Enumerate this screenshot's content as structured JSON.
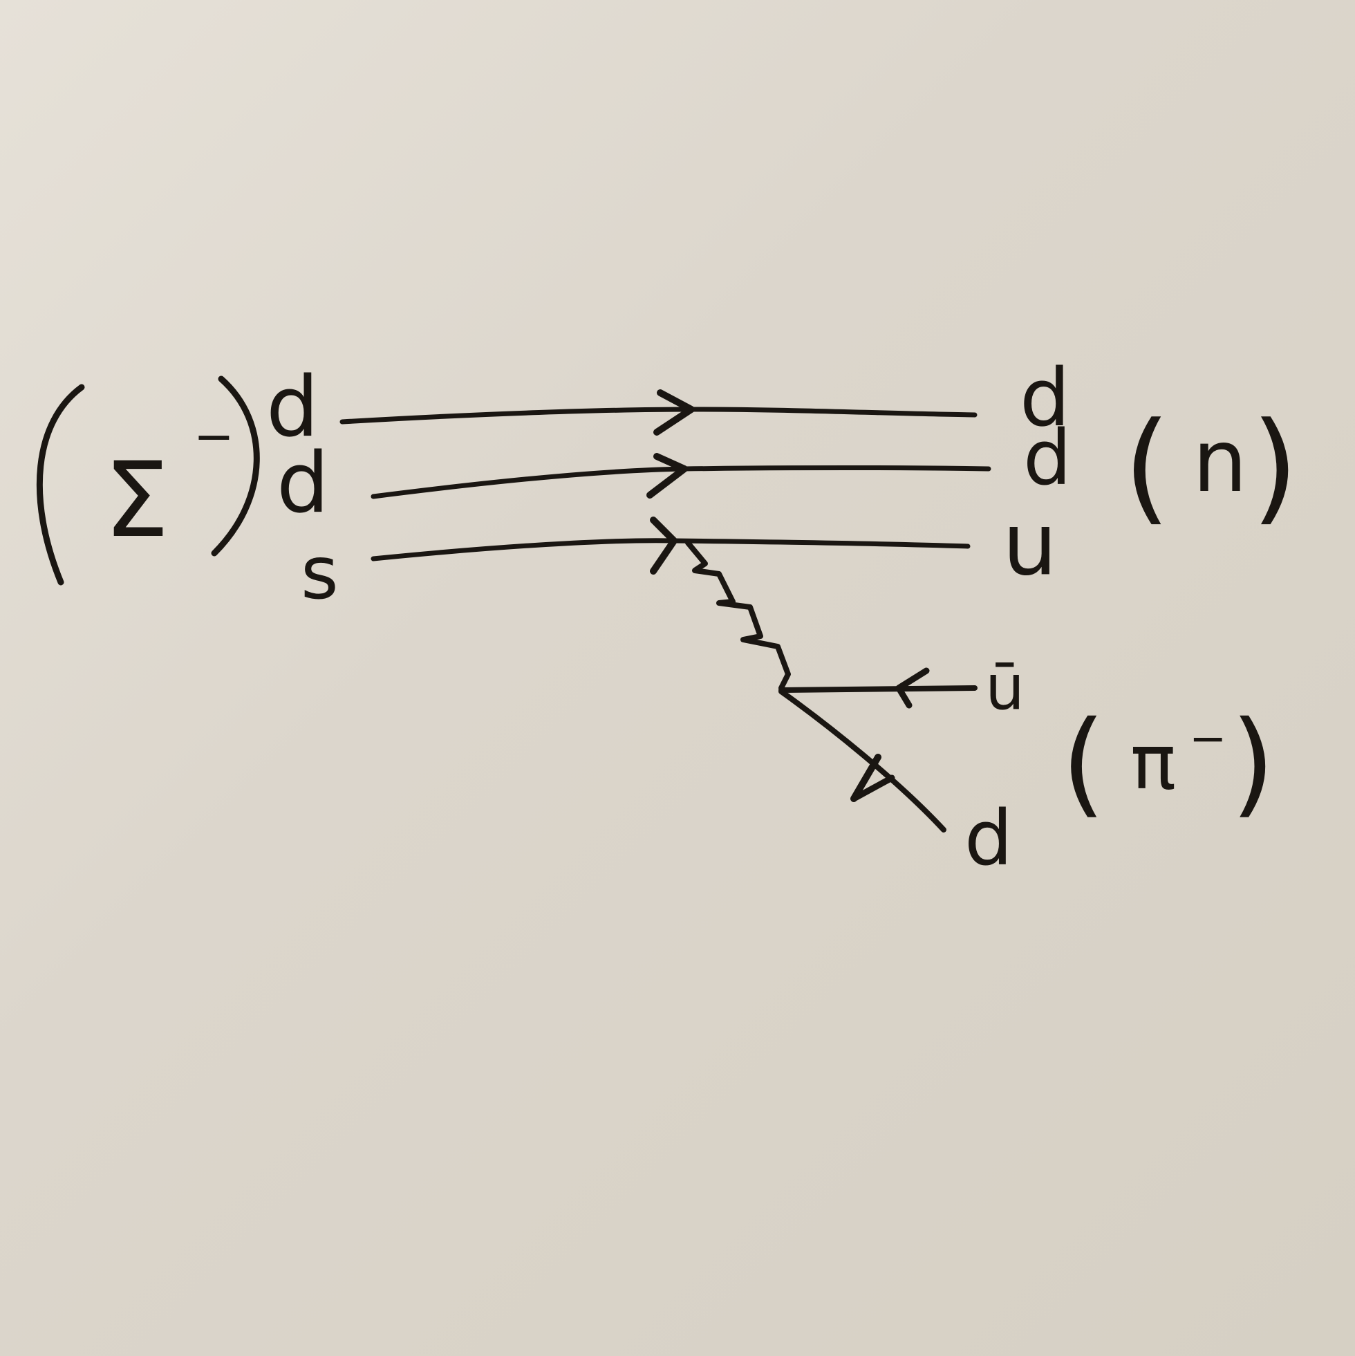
{
  "initial_particle": {
    "symbol": "Σ",
    "charge": "−",
    "quarks": [
      "d",
      "d",
      "s"
    ]
  },
  "final_baryon": {
    "quarks": [
      "d",
      "d",
      "u"
    ],
    "label_open": "(",
    "symbol": "n",
    "label_close": ")"
  },
  "final_meson": {
    "quarks": [
      "ū",
      "d"
    ],
    "label_open": "(",
    "symbol": "π",
    "charge": "−",
    "label_close": ")"
  },
  "colors": {
    "ink": "#1a1612",
    "board": "#dcd6cb"
  }
}
